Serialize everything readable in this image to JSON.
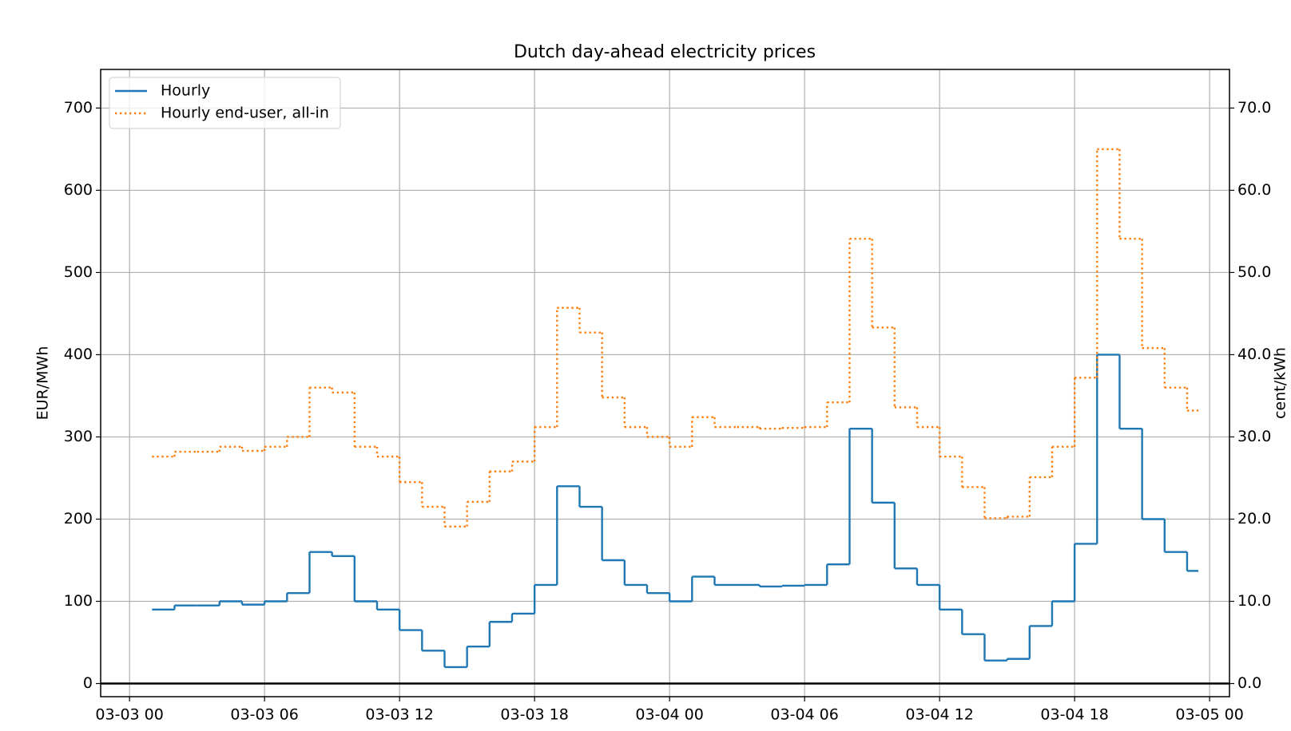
{
  "chart_data": {
    "type": "step",
    "title": "Dutch day-ahead electricity prices",
    "ylabel": "EUR/MWh",
    "y2label": "cent/kWh",
    "x": [
      "03-03 01",
      "03-03 02",
      "03-03 03",
      "03-03 04",
      "03-03 05",
      "03-03 06",
      "03-03 07",
      "03-03 08",
      "03-03 09",
      "03-03 10",
      "03-03 11",
      "03-03 12",
      "03-03 13",
      "03-03 14",
      "03-03 15",
      "03-03 16",
      "03-03 17",
      "03-03 18",
      "03-03 19",
      "03-03 20",
      "03-03 21",
      "03-03 22",
      "03-03 23",
      "03-04 00",
      "03-04 01",
      "03-04 02",
      "03-04 03",
      "03-04 04",
      "03-04 05",
      "03-04 06",
      "03-04 07",
      "03-04 08",
      "03-04 09",
      "03-04 10",
      "03-04 11",
      "03-04 12",
      "03-04 13",
      "03-04 14",
      "03-04 15",
      "03-04 16",
      "03-04 17",
      "03-04 18",
      "03-04 19",
      "03-04 20",
      "03-04 21",
      "03-04 22",
      "03-04 23"
    ],
    "series": [
      {
        "name": "Hourly",
        "color": "#1f77b4",
        "style": "solid",
        "values": [
          90,
          95,
          95,
          100,
          96,
          100,
          110,
          160,
          155,
          100,
          90,
          65,
          40,
          20,
          45,
          75,
          85,
          120,
          240,
          215,
          150,
          120,
          110,
          100,
          130,
          120,
          120,
          118,
          119,
          120,
          145,
          310,
          220,
          140,
          120,
          90,
          60,
          28,
          30,
          70,
          100,
          170,
          400,
          310,
          200,
          160,
          137
        ]
      },
      {
        "name": "Hourly end-user, all-in",
        "color": "#ff7f0e",
        "style": "dotted",
        "axis": "y2",
        "values": [
          27.6,
          28.2,
          28.2,
          28.8,
          28.3,
          28.8,
          30.0,
          36.0,
          35.4,
          28.8,
          27.6,
          24.5,
          21.5,
          19.1,
          22.1,
          25.8,
          27.0,
          31.2,
          45.7,
          42.7,
          34.8,
          31.2,
          30.0,
          28.8,
          32.4,
          31.2,
          31.2,
          31.0,
          31.1,
          31.2,
          34.2,
          54.1,
          43.3,
          33.6,
          31.2,
          27.6,
          23.9,
          20.1,
          20.3,
          25.1,
          28.8,
          37.2,
          65.0,
          54.1,
          40.8,
          36.0,
          33.2
        ]
      }
    ],
    "xlim": [
      "03-02 22:43",
      "03-05 00:53"
    ],
    "xticks": [
      "03-03 00",
      "03-03 06",
      "03-03 12",
      "03-03 18",
      "03-04 00",
      "03-04 06",
      "03-04 12",
      "03-04 18",
      "03-05 00"
    ],
    "ylim": [
      -16,
      747
    ],
    "yticks": [
      0,
      100,
      200,
      300,
      400,
      500,
      600,
      700
    ],
    "y2lim": [
      -1.6,
      74.7
    ],
    "y2ticks": [
      {
        "value": 0,
        "label": "0.0"
      },
      {
        "value": 10,
        "label": "10.0"
      },
      {
        "value": 20,
        "label": "20.0"
      },
      {
        "value": 30,
        "label": "30.0"
      },
      {
        "value": 40,
        "label": "40.0"
      },
      {
        "value": 50,
        "label": "50.0"
      },
      {
        "value": 60,
        "label": "60.0"
      },
      {
        "value": 70,
        "label": "70.0"
      }
    ],
    "grid": true,
    "legend": "upper left"
  }
}
